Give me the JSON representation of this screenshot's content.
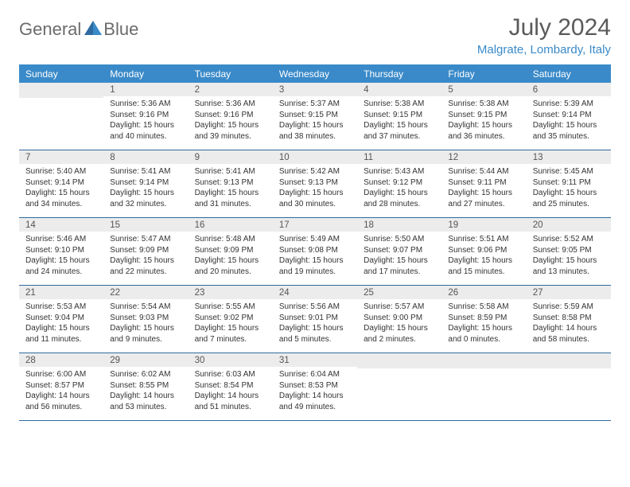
{
  "branding": {
    "logo_word1": "General",
    "logo_word2": "Blue"
  },
  "header": {
    "title": "July 2024",
    "location": "Malgrate, Lombardy, Italy"
  },
  "colors": {
    "header_bg": "#3a8ac9",
    "week_divider": "#2e6aa0",
    "daynum_bg": "#ececec",
    "body_text": "#333333",
    "title_text": "#5a5a5a",
    "logo_gray": "#6b6b6b",
    "logo_blue": "#3a8ac9",
    "page_bg": "#ffffff"
  },
  "typography": {
    "title_fontsize": 30,
    "location_fontsize": 15,
    "dow_fontsize": 12,
    "daynum_fontsize": 11.5,
    "body_fontsize": 10
  },
  "days_of_week": [
    "Sunday",
    "Monday",
    "Tuesday",
    "Wednesday",
    "Thursday",
    "Friday",
    "Saturday"
  ],
  "weeks": [
    [
      {
        "n": "",
        "sunrise": "",
        "sunset": "",
        "daylight": ""
      },
      {
        "n": "1",
        "sunrise": "Sunrise: 5:36 AM",
        "sunset": "Sunset: 9:16 PM",
        "daylight": "Daylight: 15 hours and 40 minutes."
      },
      {
        "n": "2",
        "sunrise": "Sunrise: 5:36 AM",
        "sunset": "Sunset: 9:16 PM",
        "daylight": "Daylight: 15 hours and 39 minutes."
      },
      {
        "n": "3",
        "sunrise": "Sunrise: 5:37 AM",
        "sunset": "Sunset: 9:15 PM",
        "daylight": "Daylight: 15 hours and 38 minutes."
      },
      {
        "n": "4",
        "sunrise": "Sunrise: 5:38 AM",
        "sunset": "Sunset: 9:15 PM",
        "daylight": "Daylight: 15 hours and 37 minutes."
      },
      {
        "n": "5",
        "sunrise": "Sunrise: 5:38 AM",
        "sunset": "Sunset: 9:15 PM",
        "daylight": "Daylight: 15 hours and 36 minutes."
      },
      {
        "n": "6",
        "sunrise": "Sunrise: 5:39 AM",
        "sunset": "Sunset: 9:14 PM",
        "daylight": "Daylight: 15 hours and 35 minutes."
      }
    ],
    [
      {
        "n": "7",
        "sunrise": "Sunrise: 5:40 AM",
        "sunset": "Sunset: 9:14 PM",
        "daylight": "Daylight: 15 hours and 34 minutes."
      },
      {
        "n": "8",
        "sunrise": "Sunrise: 5:41 AM",
        "sunset": "Sunset: 9:14 PM",
        "daylight": "Daylight: 15 hours and 32 minutes."
      },
      {
        "n": "9",
        "sunrise": "Sunrise: 5:41 AM",
        "sunset": "Sunset: 9:13 PM",
        "daylight": "Daylight: 15 hours and 31 minutes."
      },
      {
        "n": "10",
        "sunrise": "Sunrise: 5:42 AM",
        "sunset": "Sunset: 9:13 PM",
        "daylight": "Daylight: 15 hours and 30 minutes."
      },
      {
        "n": "11",
        "sunrise": "Sunrise: 5:43 AM",
        "sunset": "Sunset: 9:12 PM",
        "daylight": "Daylight: 15 hours and 28 minutes."
      },
      {
        "n": "12",
        "sunrise": "Sunrise: 5:44 AM",
        "sunset": "Sunset: 9:11 PM",
        "daylight": "Daylight: 15 hours and 27 minutes."
      },
      {
        "n": "13",
        "sunrise": "Sunrise: 5:45 AM",
        "sunset": "Sunset: 9:11 PM",
        "daylight": "Daylight: 15 hours and 25 minutes."
      }
    ],
    [
      {
        "n": "14",
        "sunrise": "Sunrise: 5:46 AM",
        "sunset": "Sunset: 9:10 PM",
        "daylight": "Daylight: 15 hours and 24 minutes."
      },
      {
        "n": "15",
        "sunrise": "Sunrise: 5:47 AM",
        "sunset": "Sunset: 9:09 PM",
        "daylight": "Daylight: 15 hours and 22 minutes."
      },
      {
        "n": "16",
        "sunrise": "Sunrise: 5:48 AM",
        "sunset": "Sunset: 9:09 PM",
        "daylight": "Daylight: 15 hours and 20 minutes."
      },
      {
        "n": "17",
        "sunrise": "Sunrise: 5:49 AM",
        "sunset": "Sunset: 9:08 PM",
        "daylight": "Daylight: 15 hours and 19 minutes."
      },
      {
        "n": "18",
        "sunrise": "Sunrise: 5:50 AM",
        "sunset": "Sunset: 9:07 PM",
        "daylight": "Daylight: 15 hours and 17 minutes."
      },
      {
        "n": "19",
        "sunrise": "Sunrise: 5:51 AM",
        "sunset": "Sunset: 9:06 PM",
        "daylight": "Daylight: 15 hours and 15 minutes."
      },
      {
        "n": "20",
        "sunrise": "Sunrise: 5:52 AM",
        "sunset": "Sunset: 9:05 PM",
        "daylight": "Daylight: 15 hours and 13 minutes."
      }
    ],
    [
      {
        "n": "21",
        "sunrise": "Sunrise: 5:53 AM",
        "sunset": "Sunset: 9:04 PM",
        "daylight": "Daylight: 15 hours and 11 minutes."
      },
      {
        "n": "22",
        "sunrise": "Sunrise: 5:54 AM",
        "sunset": "Sunset: 9:03 PM",
        "daylight": "Daylight: 15 hours and 9 minutes."
      },
      {
        "n": "23",
        "sunrise": "Sunrise: 5:55 AM",
        "sunset": "Sunset: 9:02 PM",
        "daylight": "Daylight: 15 hours and 7 minutes."
      },
      {
        "n": "24",
        "sunrise": "Sunrise: 5:56 AM",
        "sunset": "Sunset: 9:01 PM",
        "daylight": "Daylight: 15 hours and 5 minutes."
      },
      {
        "n": "25",
        "sunrise": "Sunrise: 5:57 AM",
        "sunset": "Sunset: 9:00 PM",
        "daylight": "Daylight: 15 hours and 2 minutes."
      },
      {
        "n": "26",
        "sunrise": "Sunrise: 5:58 AM",
        "sunset": "Sunset: 8:59 PM",
        "daylight": "Daylight: 15 hours and 0 minutes."
      },
      {
        "n": "27",
        "sunrise": "Sunrise: 5:59 AM",
        "sunset": "Sunset: 8:58 PM",
        "daylight": "Daylight: 14 hours and 58 minutes."
      }
    ],
    [
      {
        "n": "28",
        "sunrise": "Sunrise: 6:00 AM",
        "sunset": "Sunset: 8:57 PM",
        "daylight": "Daylight: 14 hours and 56 minutes."
      },
      {
        "n": "29",
        "sunrise": "Sunrise: 6:02 AM",
        "sunset": "Sunset: 8:55 PM",
        "daylight": "Daylight: 14 hours and 53 minutes."
      },
      {
        "n": "30",
        "sunrise": "Sunrise: 6:03 AM",
        "sunset": "Sunset: 8:54 PM",
        "daylight": "Daylight: 14 hours and 51 minutes."
      },
      {
        "n": "31",
        "sunrise": "Sunrise: 6:04 AM",
        "sunset": "Sunset: 8:53 PM",
        "daylight": "Daylight: 14 hours and 49 minutes."
      },
      {
        "n": "",
        "sunrise": "",
        "sunset": "",
        "daylight": ""
      },
      {
        "n": "",
        "sunrise": "",
        "sunset": "",
        "daylight": ""
      },
      {
        "n": "",
        "sunrise": "",
        "sunset": "",
        "daylight": ""
      }
    ]
  ]
}
